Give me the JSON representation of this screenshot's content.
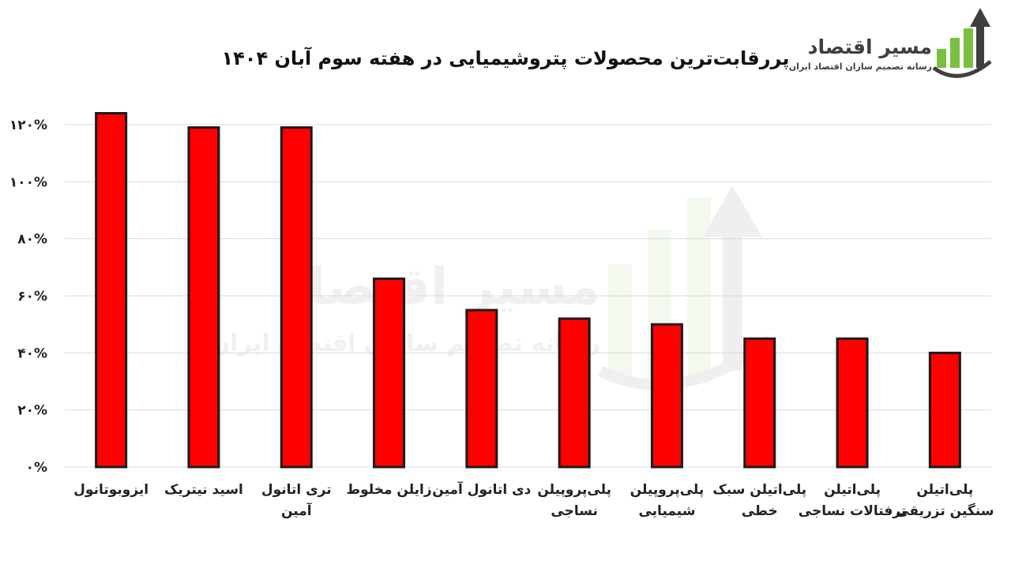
{
  "brand": {
    "name": "مسیر اقتصاد",
    "tagline": "رسانه تصمیم سازان اقتصاد ایران",
    "colors": {
      "green": "#7ac142",
      "dark": "#3f3f3f"
    },
    "icon": "growth-arrow-gear-logo"
  },
  "chart_data": {
    "type": "bar",
    "title": "پررقابت‌ترین محصولات پتروشیمیایی در هفته سوم آبان ۱۴۰۴",
    "xlabel": "",
    "ylabel": "",
    "categories": [
      [
        "ایزوبوتانول"
      ],
      [
        "اسید نیتریک"
      ],
      [
        "تری اتانول",
        "آمین"
      ],
      [
        "زایلن مخلوط"
      ],
      [
        "دی اتانول آمین"
      ],
      [
        "پلی‌پروپیلن",
        "نساجی"
      ],
      [
        "پلی‌پروپیلن",
        "شیمیایی"
      ],
      [
        "پلی‌اتیلن سبک",
        "خطی"
      ],
      [
        "پلی‌اتیلن",
        "ترفتالات نساجی"
      ],
      [
        "پلی‌اتیلن",
        "سنگین تزریقی"
      ]
    ],
    "values": [
      124,
      119,
      119,
      66,
      55,
      52,
      50,
      45,
      45,
      40
    ],
    "unit": "%",
    "ylim": [
      0,
      120
    ],
    "yticks": [
      "۰%",
      "۲۰%",
      "۴۰%",
      "۶۰%",
      "۸۰%",
      "۱۰۰%",
      "۱۲۰%"
    ],
    "ytick_values": [
      0,
      20,
      40,
      60,
      80,
      100,
      120
    ],
    "bar_color": "#ff0000",
    "grid": true,
    "legend": "none"
  }
}
